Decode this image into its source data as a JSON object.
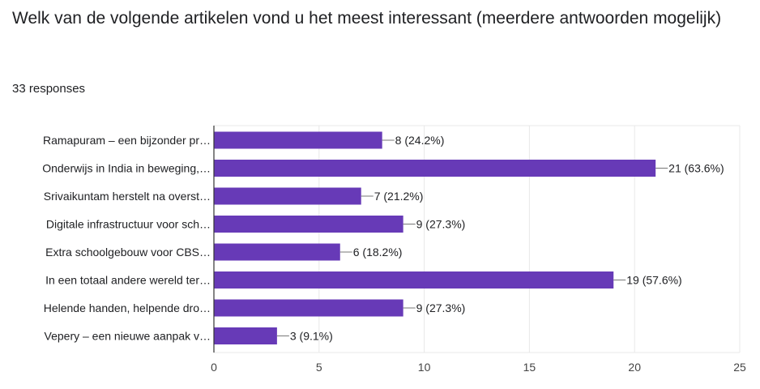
{
  "question": {
    "title": "Welk van de volgende artikelen vond u het meest interessant (meerdere antwoorden mogelijk)",
    "responses": "33 responses"
  },
  "colors": {
    "bar": "#673ab7",
    "grid": "#e8e8e8",
    "axis": "#333333",
    "text": "#202124",
    "tick": "#444444"
  },
  "chart_data": {
    "type": "bar",
    "orientation": "horizontal",
    "categories": [
      "Ramapuram – een bijzonder pr…",
      "Onderwijs in India in beweging,…",
      "Srivaikuntam herstelt na overst…",
      "Digitale infrastructuur voor sch…",
      "Extra schoolgebouw voor CBS…",
      "In een totaal andere wereld ter…",
      "Helende handen, helpende dro…",
      "Vepery – een nieuwe aanpak v…"
    ],
    "values": [
      8,
      21,
      7,
      9,
      6,
      19,
      9,
      3
    ],
    "data_labels": [
      "8 (24.2%)",
      "21 (63.6%)",
      "7 (21.2%)",
      "9 (27.3%)",
      "6 (18.2%)",
      "19 (57.6%)",
      "9 (27.3%)",
      "3 (9.1%)"
    ],
    "xlim": [
      0,
      25
    ],
    "xticks": [
      0,
      5,
      10,
      15,
      20,
      25
    ],
    "grid": true,
    "legend": "none"
  }
}
